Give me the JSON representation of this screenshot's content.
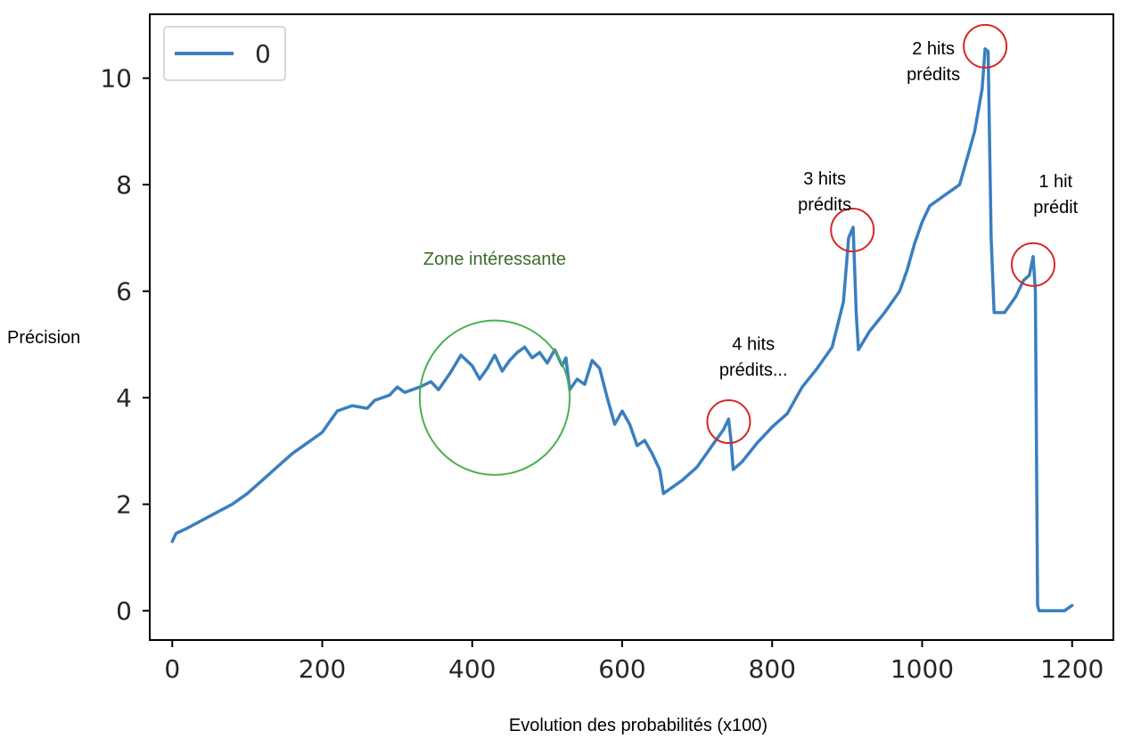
{
  "chart_data": {
    "type": "line",
    "xlabel": "Evolution des probabilités (x100)",
    "ylabel": "Précision",
    "xlim": [
      -30,
      1255
    ],
    "ylim": [
      -0.55,
      11.2
    ],
    "xticks": [
      0,
      200,
      400,
      600,
      800,
      1000,
      1200
    ],
    "yticks": [
      0,
      2,
      4,
      6,
      8,
      10
    ],
    "grid": false,
    "legend": {
      "position": "top-left",
      "entries": [
        "0"
      ]
    },
    "colors": {
      "series": "#3a7fbf",
      "highlight": "#d62728",
      "zone": "#4caf50",
      "zone_text": "#3b6b2a"
    },
    "series": [
      {
        "name": "0",
        "points": [
          [
            0,
            1.3
          ],
          [
            5,
            1.45
          ],
          [
            20,
            1.55
          ],
          [
            40,
            1.7
          ],
          [
            60,
            1.85
          ],
          [
            80,
            2.0
          ],
          [
            100,
            2.2
          ],
          [
            120,
            2.45
          ],
          [
            140,
            2.7
          ],
          [
            160,
            2.95
          ],
          [
            180,
            3.15
          ],
          [
            200,
            3.35
          ],
          [
            210,
            3.55
          ],
          [
            220,
            3.75
          ],
          [
            240,
            3.85
          ],
          [
            260,
            3.8
          ],
          [
            270,
            3.95
          ],
          [
            290,
            4.05
          ],
          [
            300,
            4.2
          ],
          [
            310,
            4.1
          ],
          [
            330,
            4.2
          ],
          [
            345,
            4.3
          ],
          [
            355,
            4.15
          ],
          [
            370,
            4.45
          ],
          [
            385,
            4.8
          ],
          [
            400,
            4.6
          ],
          [
            410,
            4.35
          ],
          [
            420,
            4.55
          ],
          [
            430,
            4.8
          ],
          [
            440,
            4.5
          ],
          [
            450,
            4.7
          ],
          [
            460,
            4.85
          ],
          [
            470,
            4.95
          ],
          [
            480,
            4.75
          ],
          [
            490,
            4.85
          ],
          [
            500,
            4.65
          ],
          [
            510,
            4.9
          ],
          [
            520,
            4.6
          ],
          [
            525,
            4.75
          ],
          [
            530,
            4.15
          ],
          [
            540,
            4.35
          ],
          [
            550,
            4.25
          ],
          [
            560,
            4.7
          ],
          [
            570,
            4.55
          ],
          [
            580,
            4.0
          ],
          [
            590,
            3.5
          ],
          [
            600,
            3.75
          ],
          [
            610,
            3.5
          ],
          [
            620,
            3.1
          ],
          [
            630,
            3.2
          ],
          [
            640,
            2.95
          ],
          [
            650,
            2.65
          ],
          [
            655,
            2.2
          ],
          [
            665,
            2.3
          ],
          [
            680,
            2.45
          ],
          [
            700,
            2.7
          ],
          [
            720,
            3.1
          ],
          [
            735,
            3.4
          ],
          [
            742,
            3.6
          ],
          [
            745,
            3.2
          ],
          [
            748,
            2.65
          ],
          [
            760,
            2.8
          ],
          [
            780,
            3.15
          ],
          [
            800,
            3.45
          ],
          [
            820,
            3.7
          ],
          [
            840,
            4.2
          ],
          [
            860,
            4.55
          ],
          [
            880,
            4.95
          ],
          [
            895,
            5.8
          ],
          [
            902,
            7.0
          ],
          [
            908,
            7.2
          ],
          [
            912,
            5.6
          ],
          [
            915,
            4.9
          ],
          [
            930,
            5.25
          ],
          [
            950,
            5.6
          ],
          [
            970,
            6.0
          ],
          [
            980,
            6.4
          ],
          [
            990,
            6.9
          ],
          [
            1000,
            7.3
          ],
          [
            1010,
            7.6
          ],
          [
            1030,
            7.8
          ],
          [
            1050,
            8.0
          ],
          [
            1060,
            8.5
          ],
          [
            1070,
            9.0
          ],
          [
            1080,
            9.8
          ],
          [
            1084,
            10.55
          ],
          [
            1088,
            10.5
          ],
          [
            1092,
            7.0
          ],
          [
            1096,
            5.6
          ],
          [
            1110,
            5.6
          ],
          [
            1125,
            5.9
          ],
          [
            1135,
            6.2
          ],
          [
            1143,
            6.3
          ],
          [
            1148,
            6.65
          ],
          [
            1151,
            6.0
          ],
          [
            1154,
            0.1
          ],
          [
            1156,
            0.0
          ],
          [
            1190,
            0.0
          ],
          [
            1200,
            0.1
          ]
        ]
      }
    ],
    "annotations": [
      {
        "lines": [
          "Zone intéressante"
        ],
        "x": 430,
        "y": 6.5,
        "style": "zone"
      },
      {
        "lines": [
          "4 hits",
          "prédits..."
        ],
        "x": 775,
        "y": 4.9,
        "style": "plain"
      },
      {
        "lines": [
          "3 hits",
          "prédits"
        ],
        "x": 870,
        "y": 8.0,
        "style": "plain"
      },
      {
        "lines": [
          "2 hits",
          "prédits"
        ],
        "x": 1015,
        "y": 10.45,
        "style": "plain"
      },
      {
        "lines": [
          "1 hit",
          "prédit"
        ],
        "x": 1178,
        "y": 7.95,
        "style": "plain"
      }
    ],
    "highlight_circles": [
      {
        "x": 742,
        "y": 3.55
      },
      {
        "x": 907,
        "y": 7.15
      },
      {
        "x": 1084,
        "y": 10.6
      },
      {
        "x": 1148,
        "y": 6.5
      }
    ],
    "zone_ellipse": {
      "cx": 430,
      "cy": 4.0,
      "rx": 100,
      "ry": 1.45
    }
  }
}
